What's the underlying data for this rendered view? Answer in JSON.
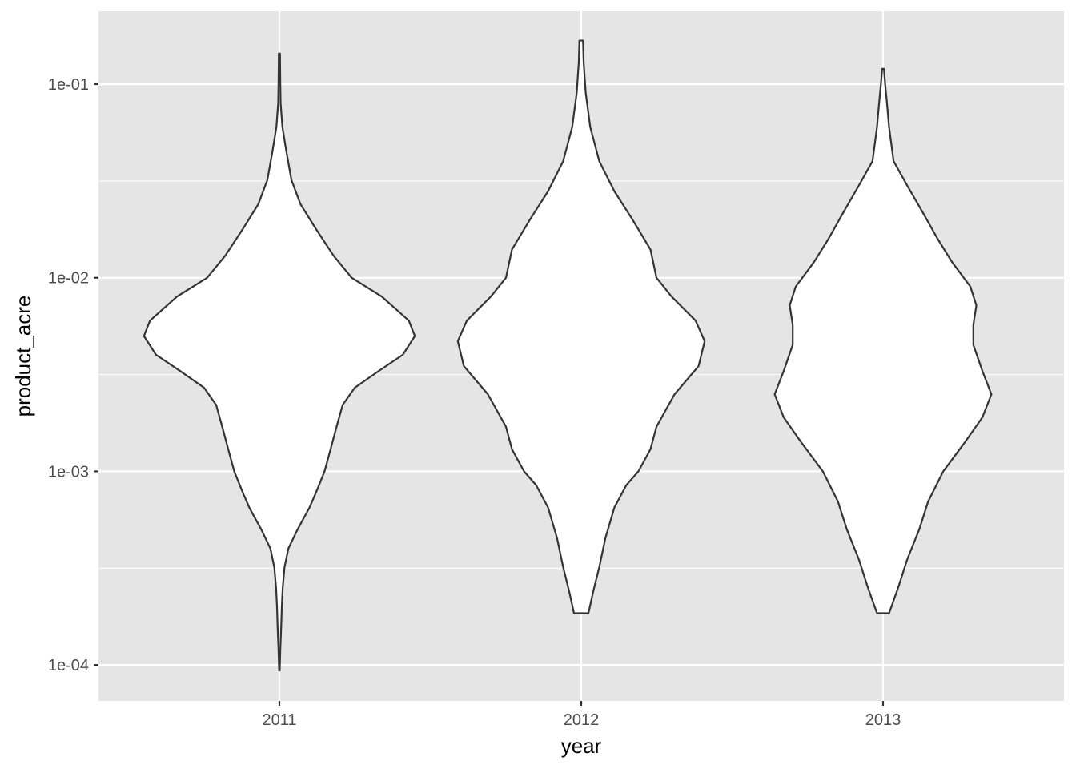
{
  "chart_data": {
    "type": "violin",
    "xlabel": "year",
    "ylabel": "product_acre",
    "categories": [
      "2011",
      "2012",
      "2013"
    ],
    "y_scale": "log10",
    "ylim": [
      6.52e-05,
      0.238
    ],
    "y_ticks": [
      {
        "value": 0.0001,
        "label": "1e-04"
      },
      {
        "value": 0.001,
        "label": "1e-03"
      },
      {
        "value": 0.01,
        "label": "1e-02"
      },
      {
        "value": 0.1,
        "label": "1e-01"
      }
    ],
    "y_minor_ticks": [
      0.000316,
      0.00316,
      0.0316
    ],
    "grid": true,
    "colors": {
      "panel_background": "#E5E5E5",
      "grid_line": "#FFFFFF",
      "violin_fill": "#FFFFFF",
      "violin_outline": "#333333",
      "tick_label": "#4D4D4D",
      "tick_mark": "#333333",
      "axis_title": "#000000"
    },
    "series": [
      {
        "category": "2011",
        "min": 9.35e-05,
        "max": 0.144,
        "profile": [
          [
            9.35e-05,
            0.002
          ],
          [
            0.00012,
            0.006
          ],
          [
            0.00015,
            0.011
          ],
          [
            0.0002,
            0.016
          ],
          [
            0.00025,
            0.022
          ],
          [
            0.00032,
            0.034
          ],
          [
            0.0004,
            0.06
          ],
          [
            0.0005,
            0.12
          ],
          [
            0.00065,
            0.2
          ],
          [
            0.0008,
            0.25
          ],
          [
            0.001,
            0.3
          ],
          [
            0.0013,
            0.34
          ],
          [
            0.0017,
            0.38
          ],
          [
            0.0022,
            0.42
          ],
          [
            0.0027,
            0.5
          ],
          [
            0.0033,
            0.66
          ],
          [
            0.004,
            0.82
          ],
          [
            0.005,
            0.9
          ],
          [
            0.006,
            0.86
          ],
          [
            0.008,
            0.68
          ],
          [
            0.01,
            0.48
          ],
          [
            0.013,
            0.36
          ],
          [
            0.018,
            0.24
          ],
          [
            0.024,
            0.14
          ],
          [
            0.032,
            0.08
          ],
          [
            0.045,
            0.046
          ],
          [
            0.06,
            0.02
          ],
          [
            0.08,
            0.008
          ],
          [
            0.1,
            0.006
          ],
          [
            0.144,
            0.004
          ]
        ]
      },
      {
        "category": "2012",
        "min": 0.000185,
        "max": 0.168,
        "profile": [
          [
            0.000185,
            0.048
          ],
          [
            0.00024,
            0.08
          ],
          [
            0.00032,
            0.12
          ],
          [
            0.00045,
            0.16
          ],
          [
            0.00065,
            0.22
          ],
          [
            0.00085,
            0.3
          ],
          [
            0.001,
            0.38
          ],
          [
            0.0013,
            0.46
          ],
          [
            0.0017,
            0.5
          ],
          [
            0.0025,
            0.62
          ],
          [
            0.0035,
            0.78
          ],
          [
            0.0047,
            0.82
          ],
          [
            0.006,
            0.76
          ],
          [
            0.008,
            0.6
          ],
          [
            0.01,
            0.5
          ],
          [
            0.014,
            0.46
          ],
          [
            0.02,
            0.34
          ],
          [
            0.028,
            0.22
          ],
          [
            0.04,
            0.12
          ],
          [
            0.06,
            0.06
          ],
          [
            0.09,
            0.03
          ],
          [
            0.13,
            0.016
          ],
          [
            0.168,
            0.012
          ]
        ]
      },
      {
        "category": "2013",
        "min": 0.000185,
        "max": 0.12,
        "profile": [
          [
            0.000185,
            0.04
          ],
          [
            0.00025,
            0.1
          ],
          [
            0.00035,
            0.16
          ],
          [
            0.0005,
            0.24
          ],
          [
            0.0007,
            0.3
          ],
          [
            0.001,
            0.4
          ],
          [
            0.0014,
            0.54
          ],
          [
            0.0019,
            0.66
          ],
          [
            0.0025,
            0.72
          ],
          [
            0.0033,
            0.66
          ],
          [
            0.0045,
            0.6
          ],
          [
            0.0057,
            0.6
          ],
          [
            0.0072,
            0.62
          ],
          [
            0.009,
            0.58
          ],
          [
            0.012,
            0.46
          ],
          [
            0.016,
            0.36
          ],
          [
            0.022,
            0.26
          ],
          [
            0.03,
            0.16
          ],
          [
            0.04,
            0.07
          ],
          [
            0.06,
            0.04
          ],
          [
            0.08,
            0.026
          ],
          [
            0.1,
            0.014
          ],
          [
            0.12,
            0.006
          ]
        ]
      }
    ]
  }
}
